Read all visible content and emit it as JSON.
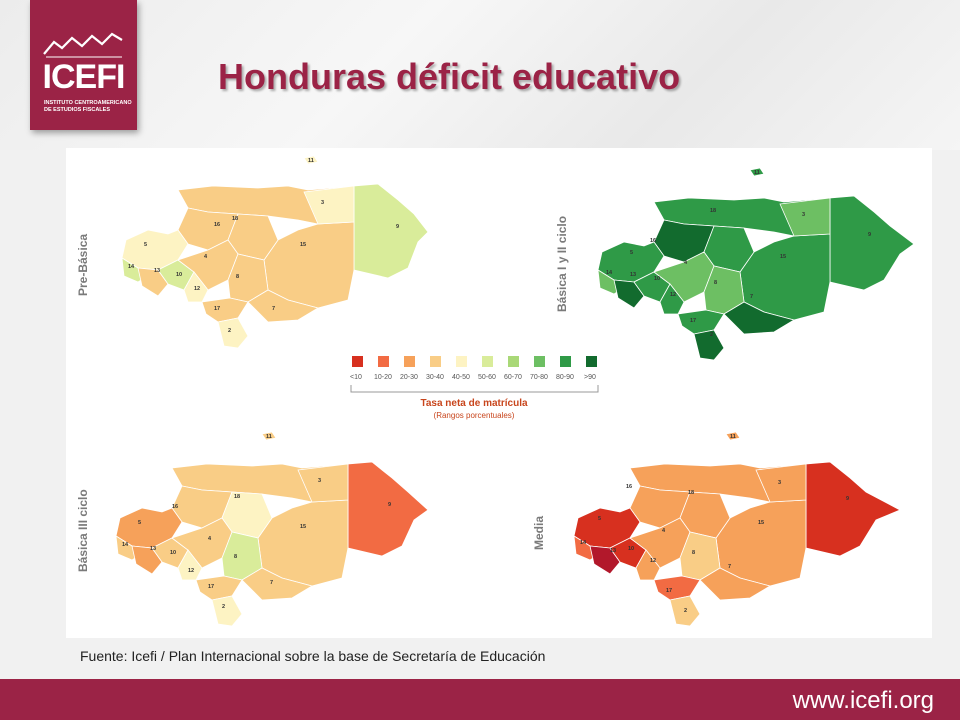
{
  "header": {
    "title": "Honduras déficit educativo",
    "logo_name": "ICEFI",
    "logo_subtitle": "INSTITUTO CENTROAMERICANO DE ESTUDIOS FISCALES"
  },
  "maps": [
    {
      "label": "Pre-Básica"
    },
    {
      "label": "Básica I y II ciclo"
    },
    {
      "label": "Básica III ciclo"
    },
    {
      "label": "Media"
    }
  ],
  "legend": {
    "title": "Tasa neta de matrícula",
    "subtitle": "(Rangos porcentuales)",
    "bins": [
      {
        "label": "<10",
        "color": "#d7301f"
      },
      {
        "label": "10-20",
        "color": "#f26b43"
      },
      {
        "label": "20-30",
        "color": "#f6a15a"
      },
      {
        "label": "30-40",
        "color": "#f9cd86"
      },
      {
        "label": "40-50",
        "color": "#fdf3c3"
      },
      {
        "label": "50-60",
        "color": "#d9ec9a"
      },
      {
        "label": "60-70",
        "color": "#a9d877"
      },
      {
        "label": "70-80",
        "color": "#6dbf63"
      },
      {
        "label": "80-90",
        "color": "#2f9a47"
      },
      {
        "label": ">90",
        "color": "#126b2e"
      }
    ]
  },
  "source": "Fuente: Icefi / Plan Internacional sobre la base de Secretaría de Educación",
  "footer": {
    "url": "www.icefi.org"
  }
}
